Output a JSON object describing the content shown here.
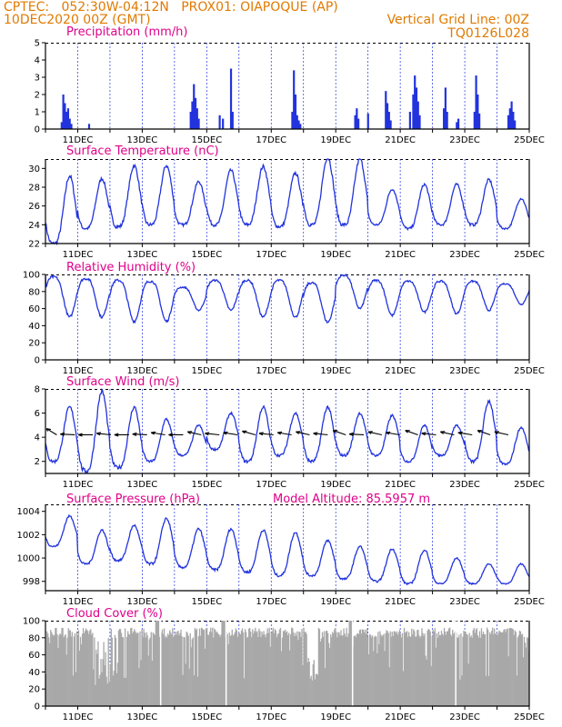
{
  "header": {
    "line1": "CPTEC:   052:30W-04:12N   PROX01: OIAPOQUE (AP)",
    "line2_left": "10DEC2020 00Z (GMT)",
    "line2_right": "Vertical Grid Line: 00Z",
    "line3_right": "TQ0126L028"
  },
  "colors": {
    "header": "#e07a00",
    "title": "#e0008a",
    "series": "#2233dd",
    "cloud": "#a8a8a8",
    "grid": "#2233dd"
  },
  "chart_data": [
    {
      "type": "bar",
      "title": "Precipitation (mm/h)",
      "ylim": [
        0,
        5
      ],
      "yticks": [
        0,
        1,
        2,
        3,
        4,
        5
      ],
      "xticks": [
        "11DEC",
        "13DEC",
        "15DEC",
        "17DEC",
        "19DEC",
        "21DEC",
        "23DEC",
        "25DEC"
      ],
      "events": [
        {
          "x": 0.55,
          "v": 2.0
        },
        {
          "x": 0.6,
          "v": 1.5
        },
        {
          "x": 0.65,
          "v": 1.0
        },
        {
          "x": 0.7,
          "v": 1.2
        },
        {
          "x": 0.75,
          "v": 0.6
        },
        {
          "x": 0.5,
          "v": 0.4
        },
        {
          "x": 0.8,
          "v": 0.3
        },
        {
          "x": 1.35,
          "v": 0.3
        },
        {
          "x": 4.5,
          "v": 1.0
        },
        {
          "x": 4.55,
          "v": 1.6
        },
        {
          "x": 4.6,
          "v": 2.6
        },
        {
          "x": 4.65,
          "v": 1.8
        },
        {
          "x": 4.7,
          "v": 1.2
        },
        {
          "x": 4.75,
          "v": 0.6
        },
        {
          "x": 5.4,
          "v": 0.8
        },
        {
          "x": 5.5,
          "v": 0.6
        },
        {
          "x": 5.75,
          "v": 3.5
        },
        {
          "x": 5.8,
          "v": 1.0
        },
        {
          "x": 7.65,
          "v": 1.0
        },
        {
          "x": 7.7,
          "v": 3.4
        },
        {
          "x": 7.75,
          "v": 2.0
        },
        {
          "x": 7.8,
          "v": 0.8
        },
        {
          "x": 7.85,
          "v": 0.5
        },
        {
          "x": 7.9,
          "v": 0.3
        },
        {
          "x": 9.6,
          "v": 0.8
        },
        {
          "x": 9.65,
          "v": 1.2
        },
        {
          "x": 9.7,
          "v": 0.6
        },
        {
          "x": 10.0,
          "v": 0.9
        },
        {
          "x": 10.55,
          "v": 2.2
        },
        {
          "x": 10.6,
          "v": 1.5
        },
        {
          "x": 10.65,
          "v": 1.0
        },
        {
          "x": 10.7,
          "v": 0.5
        },
        {
          "x": 11.3,
          "v": 1.0
        },
        {
          "x": 11.4,
          "v": 2.0
        },
        {
          "x": 11.45,
          "v": 3.1
        },
        {
          "x": 11.5,
          "v": 2.4
        },
        {
          "x": 11.55,
          "v": 1.6
        },
        {
          "x": 11.6,
          "v": 0.8
        },
        {
          "x": 12.35,
          "v": 1.2
        },
        {
          "x": 12.4,
          "v": 2.4
        },
        {
          "x": 12.45,
          "v": 1.0
        },
        {
          "x": 12.75,
          "v": 0.4
        },
        {
          "x": 12.8,
          "v": 0.6
        },
        {
          "x": 13.3,
          "v": 1.0
        },
        {
          "x": 13.35,
          "v": 3.1
        },
        {
          "x": 13.4,
          "v": 2.0
        },
        {
          "x": 13.45,
          "v": 0.9
        },
        {
          "x": 14.35,
          "v": 0.8
        },
        {
          "x": 14.4,
          "v": 1.2
        },
        {
          "x": 14.45,
          "v": 1.6
        },
        {
          "x": 14.5,
          "v": 1.0
        },
        {
          "x": 14.55,
          "v": 0.5
        }
      ]
    },
    {
      "type": "line",
      "title": "Surface Temperature (nC)",
      "ylim": [
        22,
        31
      ],
      "yticks": [
        22,
        24,
        26,
        28,
        30
      ],
      "mins": [
        22.0,
        23.6,
        23.8,
        24.0,
        24.0,
        24.0,
        24.0,
        23.8,
        24.0,
        24.0,
        24.0,
        23.6,
        24.0,
        24.0,
        23.6
      ],
      "maxs": [
        29.2,
        28.9,
        30.3,
        30.3,
        28.6,
        29.8,
        30.2,
        29.5,
        31.2,
        31.0,
        27.8,
        28.3,
        28.3,
        28.8,
        26.8
      ],
      "end": 24.9
    },
    {
      "type": "line",
      "title": "Relative Humidity (%)",
      "ylim": [
        0,
        100
      ],
      "yticks": [
        0,
        20,
        40,
        60,
        80,
        100
      ],
      "mins": [
        50,
        50,
        45,
        45,
        58,
        58,
        50,
        50,
        44,
        60,
        52,
        56,
        54,
        58,
        65
      ],
      "maxs": [
        97,
        95,
        93,
        92,
        85,
        93,
        93,
        93,
        90,
        99,
        93,
        92,
        92,
        92,
        89
      ],
      "start": 98
    },
    {
      "type": "line",
      "title": "Surface Wind (m/s)",
      "ylim": [
        1,
        8
      ],
      "yticks": [
        2,
        4,
        6,
        8
      ],
      "mins": [
        2.0,
        1.2,
        1.5,
        2.0,
        2.5,
        3.0,
        2.0,
        2.5,
        2.0,
        2.5,
        2.5,
        2.0,
        2.5,
        2.0,
        1.8
      ],
      "maxs": [
        6.5,
        7.8,
        6.5,
        5.5,
        5.0,
        6.0,
        6.5,
        6.0,
        6.5,
        6.0,
        5.8,
        5.0,
        5.0,
        7.0,
        4.8
      ],
      "arrows": [
        135,
        175,
        180,
        170,
        180,
        175,
        165,
        180,
        160,
        170,
        165,
        155,
        170,
        165,
        160,
        170,
        150,
        175,
        160,
        165,
        150,
        170,
        160,
        165,
        150,
        160
      ]
    },
    {
      "type": "line",
      "title": "Surface Pressure (hPa)",
      "annotation": "Model Altitude: 85.5957 m",
      "ylim": [
        997.2,
        1004.6
      ],
      "yticks": [
        998,
        1000,
        1002,
        1004
      ],
      "mins": [
        1001.0,
        999.5,
        999.8,
        999.5,
        999.2,
        999.0,
        998.8,
        998.5,
        998.5,
        998.2,
        998.0,
        997.8,
        997.8,
        997.8,
        997.8
      ],
      "maxs": [
        1003.6,
        1002.4,
        1002.8,
        1003.4,
        1002.5,
        1002.5,
        1002.4,
        1002.2,
        1001.5,
        1001.0,
        1000.8,
        1000.7,
        1000.0,
        999.5,
        999.5
      ]
    },
    {
      "type": "area",
      "title": "Cloud Cover (%)",
      "ylim": [
        0,
        100
      ],
      "yticks": [
        0,
        20,
        40,
        60,
        80,
        100
      ]
    }
  ]
}
